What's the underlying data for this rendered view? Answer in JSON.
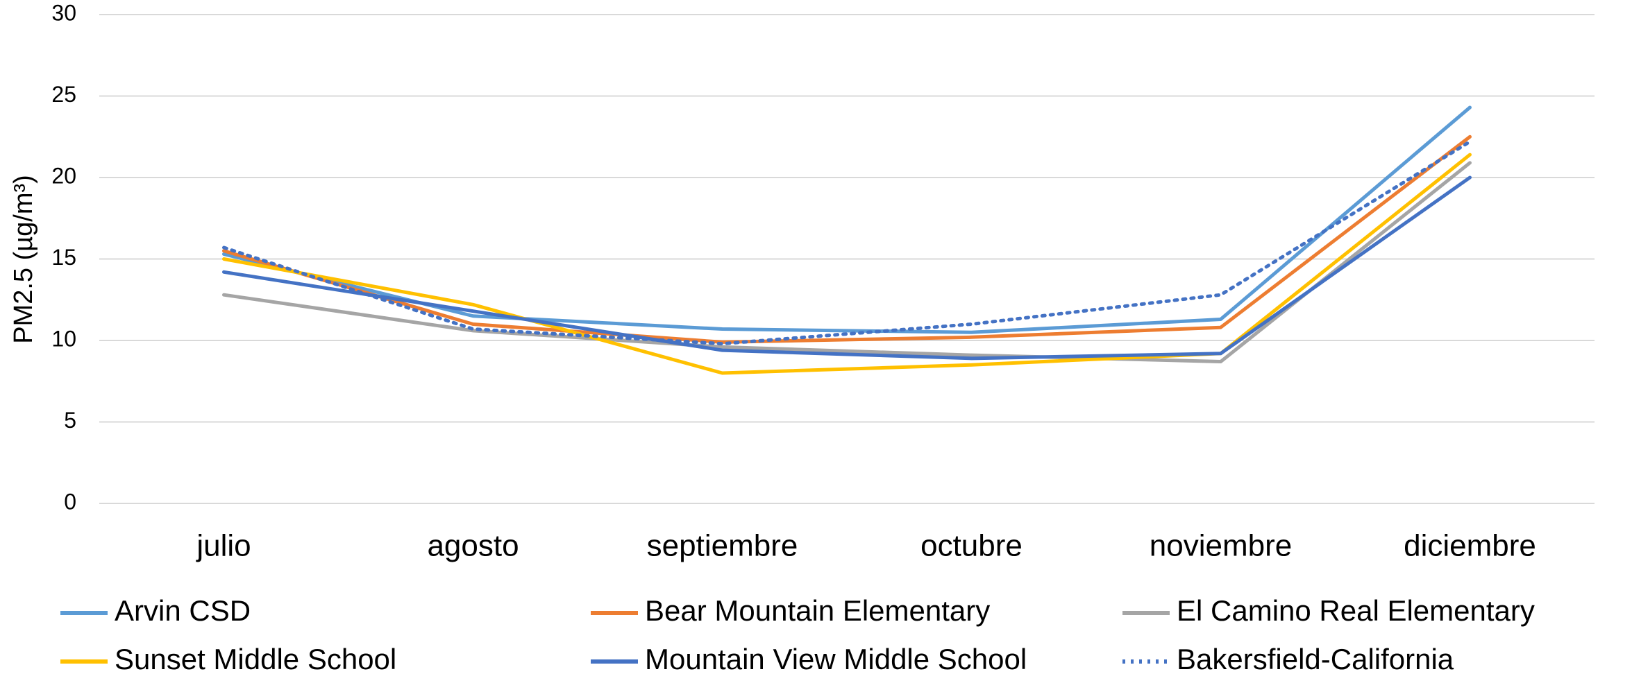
{
  "chart_data": {
    "type": "line",
    "y_label": "PM2.5 (µg/m³)",
    "categories": [
      "julio",
      "agosto",
      "septiembre",
      "octubre",
      "noviembre",
      "diciembre"
    ],
    "series": [
      {
        "name": "Arvin CSD",
        "color": "#5b9bd5",
        "style": "solid",
        "values": [
          15.3,
          11.5,
          10.7,
          10.5,
          11.3,
          24.3
        ]
      },
      {
        "name": "Bear Mountain Elementary",
        "color": "#ed7d31",
        "style": "solid",
        "values": [
          15.5,
          11.0,
          9.9,
          10.2,
          10.8,
          22.5
        ]
      },
      {
        "name": "El Camino Real Elementary",
        "color": "#a5a5a5",
        "style": "solid",
        "values": [
          12.8,
          10.6,
          9.6,
          9.1,
          8.7,
          20.9
        ]
      },
      {
        "name": "Sunset Middle School",
        "color": "#ffc000",
        "style": "solid",
        "values": [
          15.0,
          12.2,
          8.0,
          8.5,
          9.2,
          21.4
        ]
      },
      {
        "name": "Mountain View Middle School",
        "color": "#4472c4",
        "style": "solid",
        "values": [
          14.2,
          11.8,
          9.4,
          8.9,
          9.2,
          20.0
        ]
      },
      {
        "name": "Bakersfield-California",
        "color": "#4472c4",
        "style": "dotted",
        "values": [
          15.7,
          10.7,
          9.8,
          11.0,
          12.8,
          22.2
        ]
      }
    ],
    "ylim": [
      0,
      30
    ],
    "yticks": [
      0,
      5,
      10,
      15,
      20,
      25,
      30
    ],
    "grid": true,
    "legend": "bottom"
  }
}
